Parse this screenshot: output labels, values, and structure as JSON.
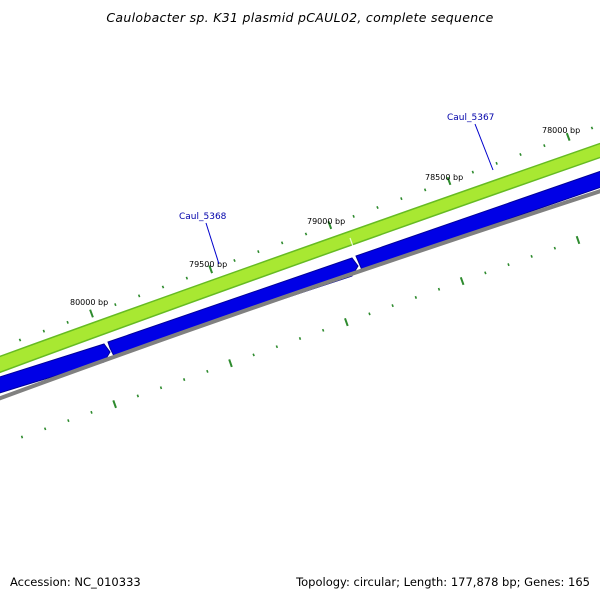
{
  "title": "Caulobacter sp. K31 plasmid pCAUL02, complete sequence",
  "footer": {
    "accession": "Accession: NC_010333",
    "stats": "Topology: circular; Length: 177,878 bp; Genes: 165"
  },
  "colors": {
    "outer_track_fill": "#bfff3a",
    "outer_track_edge": "#66bb22",
    "gene_fill": "#0000e6",
    "gene_edge": "#00009a",
    "backbone": "#808080",
    "tick": "#2e8b2e",
    "gene_label": "#0000aa"
  },
  "scale": {
    "labels": [
      {
        "bp": 78000,
        "text": "78000 bp"
      },
      {
        "bp": 78500,
        "text": "78500 bp"
      },
      {
        "bp": 79000,
        "text": "79000 bp"
      },
      {
        "bp": 79500,
        "text": "79500 bp"
      },
      {
        "bp": 80000,
        "text": "80000 bp"
      }
    ]
  },
  "genes": [
    {
      "name": "Caul_5367"
    },
    {
      "name": "Caul_5368"
    }
  ]
}
